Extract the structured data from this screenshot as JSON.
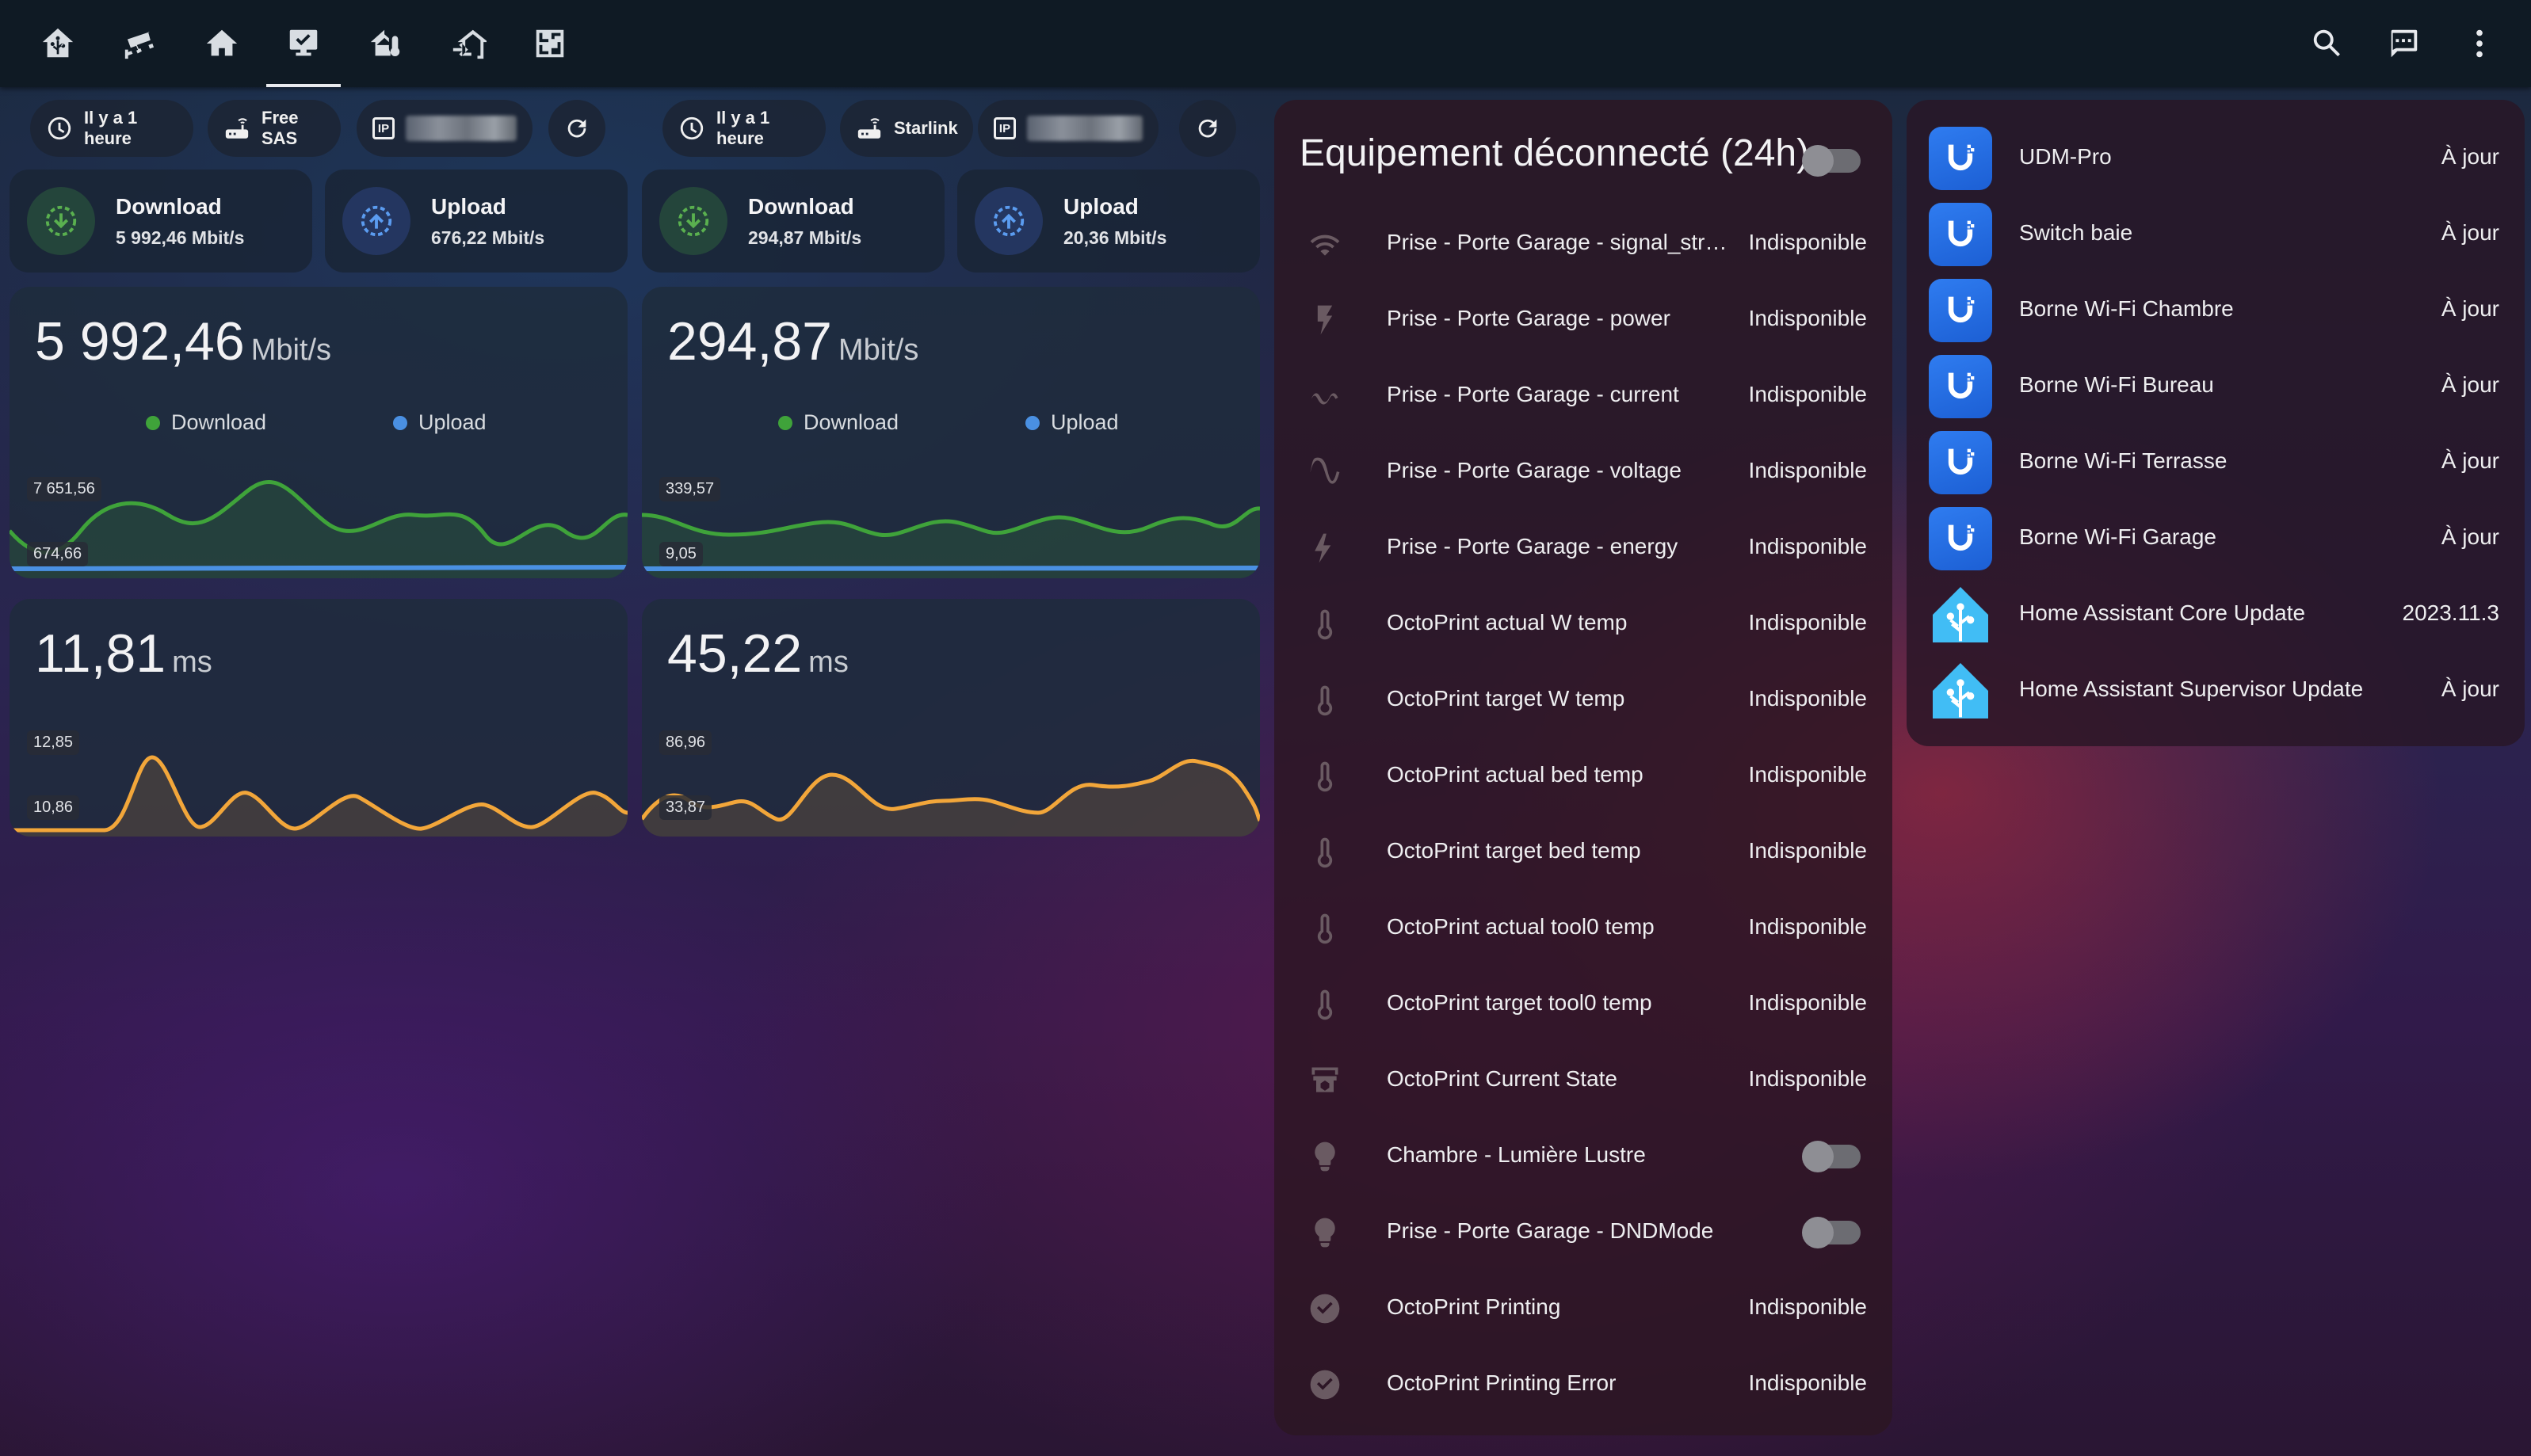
{
  "nav": {
    "tabs": [
      {
        "name": "home-assistant-icon"
      },
      {
        "name": "cctv-icon"
      },
      {
        "name": "house-icon"
      },
      {
        "name": "monitor-check-icon",
        "active": true
      },
      {
        "name": "home-thermometer-icon"
      },
      {
        "name": "home-import-icon"
      },
      {
        "name": "floor-plan-icon"
      }
    ],
    "actions": [
      "search-icon",
      "assist-icon",
      "menu-dots-icon"
    ]
  },
  "isp1": {
    "updated": "Il y a 1 heure",
    "provider": "Free SAS",
    "ip_label": "IP",
    "download_label": "Download",
    "download_value": "5 992,46 Mbit/s",
    "upload_label": "Upload",
    "upload_value": "676,22 Mbit/s",
    "speed_big": "5 992,46",
    "speed_unit": "Mbit/s",
    "legend_download": "Download",
    "legend_upload": "Upload",
    "speed_max": "7 651,56",
    "speed_min": "674,66",
    "ping_big": "11,81",
    "ping_unit": "ms",
    "ping_max": "12,85",
    "ping_min": "10,86"
  },
  "isp2": {
    "updated": "Il y a 1 heure",
    "provider": "Starlink",
    "ip_label": "IP",
    "download_label": "Download",
    "download_value": "294,87 Mbit/s",
    "upload_label": "Upload",
    "upload_value": "20,36 Mbit/s",
    "speed_big": "294,87",
    "speed_unit": "Mbit/s",
    "legend_download": "Download",
    "legend_upload": "Upload",
    "speed_max": "339,57",
    "speed_min": "9,05",
    "ping_big": "45,22",
    "ping_unit": "ms",
    "ping_max": "86,96",
    "ping_min": "33,87"
  },
  "colors": {
    "download": "#3fa33a",
    "upload": "#4a90e2",
    "ping": "#f2a63a",
    "ubiquiti": "#2f7cf0",
    "homeassistant": "#41bdf5"
  },
  "offline": {
    "title": "Equipement déconnecté (24h)",
    "toggle_on": false,
    "rows": [
      {
        "icon": "wifi-icon",
        "name": "Prise - Porte Garage - signal_stre...",
        "state": "Indisponible"
      },
      {
        "icon": "flash-icon",
        "name": "Prise - Porte Garage - power",
        "state": "Indisponible"
      },
      {
        "icon": "current-ac-icon",
        "name": "Prise - Porte Garage - current",
        "state": "Indisponible"
      },
      {
        "icon": "sine-wave-icon",
        "name": "Prise - Porte Garage - voltage",
        "state": "Indisponible"
      },
      {
        "icon": "lightning-icon",
        "name": "Prise - Porte Garage - energy",
        "state": "Indisponible"
      },
      {
        "icon": "thermometer-icon",
        "name": "OctoPrint actual W temp",
        "state": "Indisponible"
      },
      {
        "icon": "thermometer-icon",
        "name": "OctoPrint target W temp",
        "state": "Indisponible"
      },
      {
        "icon": "thermometer-icon",
        "name": "OctoPrint actual bed temp",
        "state": "Indisponible"
      },
      {
        "icon": "thermometer-icon",
        "name": "OctoPrint target bed temp",
        "state": "Indisponible"
      },
      {
        "icon": "thermometer-icon",
        "name": "OctoPrint actual tool0 temp",
        "state": "Indisponible"
      },
      {
        "icon": "thermometer-icon",
        "name": "OctoPrint target tool0 temp",
        "state": "Indisponible"
      },
      {
        "icon": "printer-3d-icon",
        "name": "OctoPrint Current State",
        "state": "Indisponible"
      },
      {
        "icon": "lightbulb-icon",
        "name": "Chambre - Lumière Lustre",
        "state": "",
        "toggle": true
      },
      {
        "icon": "lightbulb-icon",
        "name": "Prise - Porte Garage - DNDMode",
        "state": "",
        "toggle": true
      },
      {
        "icon": "check-circle-icon",
        "name": "OctoPrint Printing",
        "state": "Indisponible"
      },
      {
        "icon": "check-circle-icon",
        "name": "OctoPrint Printing Error",
        "state": "Indisponible"
      }
    ]
  },
  "updates": {
    "rows": [
      {
        "logo": "ubiquiti-logo-icon",
        "name": "UDM-Pro",
        "state": "À jour"
      },
      {
        "logo": "ubiquiti-logo-icon",
        "name": "Switch baie",
        "state": "À jour"
      },
      {
        "logo": "ubiquiti-logo-icon",
        "name": "Borne Wi-Fi Chambre",
        "state": "À jour"
      },
      {
        "logo": "ubiquiti-logo-icon",
        "name": "Borne Wi-Fi Bureau",
        "state": "À jour"
      },
      {
        "logo": "ubiquiti-logo-icon",
        "name": "Borne Wi-Fi Terrasse",
        "state": "À jour"
      },
      {
        "logo": "ubiquiti-logo-icon",
        "name": "Borne Wi-Fi Garage",
        "state": "À jour"
      },
      {
        "logo": "home-assistant-logo-icon",
        "name": "Home Assistant Core Update",
        "state": "2023.11.3"
      },
      {
        "logo": "home-assistant-logo-icon",
        "name": "Home Assistant Supervisor Update",
        "state": "À jour"
      }
    ]
  }
}
